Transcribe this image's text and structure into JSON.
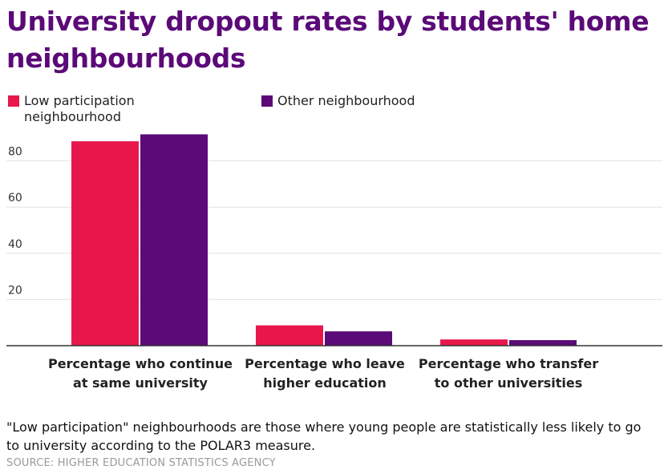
{
  "chart_data": {
    "type": "bar",
    "title": "University dropout rates by students' home neighbourhoods",
    "categories": [
      "Percentage who continue at same university",
      "Percentage who leave higher education",
      "Percentage who transfer to other universities"
    ],
    "series": [
      {
        "name": "Low participation neighbourhood",
        "color": "#e8174b",
        "values": [
          88.5,
          8.8,
          2.7
        ]
      },
      {
        "name": "Other neighbourhood",
        "color": "#5b0a78",
        "values": [
          91.5,
          6.2,
          2.4
        ]
      }
    ],
    "y_ticks": [
      20,
      40,
      60,
      80
    ],
    "ylim": [
      0,
      100
    ],
    "grid": true,
    "legend_position": "top-left",
    "xlabel": "",
    "ylabel": ""
  },
  "note": "\"Low participation\" neighbourhoods are those where young people are statistically less likely to go to university according to the POLAR3 measure.",
  "source": "SOURCE: HIGHER EDUCATION STATISTICS AGENCY"
}
